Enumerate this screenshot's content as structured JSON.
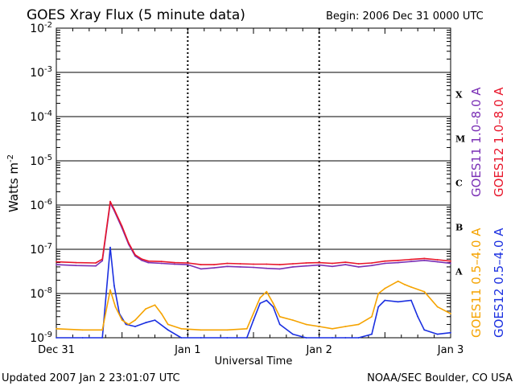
{
  "chart_data": {
    "type": "line",
    "title": "GOES Xray Flux (5 minute data)",
    "begin": "Begin:  2006 Dec 31 0000 UTC",
    "xlabel": "Universal Time",
    "ylabel": "Watts m",
    "ylabel_sup": "-2",
    "y_scale": "log",
    "ylim": [
      1e-09,
      0.01
    ],
    "y_ticks": [
      {
        "base": "10",
        "exp": "-2",
        "value": 0.01
      },
      {
        "base": "10",
        "exp": "-3",
        "value": 0.001
      },
      {
        "base": "10",
        "exp": "-4",
        "value": 0.0001
      },
      {
        "base": "10",
        "exp": "-5",
        "value": 1e-05
      },
      {
        "base": "10",
        "exp": "-6",
        "value": 1e-06
      },
      {
        "base": "10",
        "exp": "-7",
        "value": 1e-07
      },
      {
        "base": "10",
        "exp": "-8",
        "value": 1e-08
      },
      {
        "base": "10",
        "exp": "-9",
        "value": 1e-09
      }
    ],
    "x_days": [
      0,
      3
    ],
    "x_ticks": [
      {
        "label": "Dec 31",
        "day": 0
      },
      {
        "label": "Jan 1",
        "day": 1
      },
      {
        "label": "Jan 2",
        "day": 2
      },
      {
        "label": "Jan 3",
        "day": 3
      }
    ],
    "flare_classes": [
      {
        "label": "X",
        "value": 0.000316
      },
      {
        "label": "M",
        "value": 3.16e-05
      },
      {
        "label": "C",
        "value": 3.16e-06
      },
      {
        "label": "B",
        "value": 3.16e-07
      },
      {
        "label": "A",
        "value": 3.16e-08
      }
    ],
    "colors": {
      "goes11_long": "#7a2fb5",
      "goes12_long": "#e8162b",
      "goes11_short": "#f5a300",
      "goes12_short": "#1a2fe0"
    },
    "series": [
      {
        "name": "GOES11 1.0–8.0 A",
        "color_key": "goes11_long",
        "x": [
          0.0,
          0.15,
          0.3,
          0.35,
          0.41,
          0.44,
          0.5,
          0.55,
          0.6,
          0.65,
          0.7,
          0.8,
          0.9,
          1.0,
          1.1,
          1.2,
          1.3,
          1.4,
          1.5,
          1.6,
          1.7,
          1.8,
          1.9,
          2.0,
          2.1,
          2.2,
          2.3,
          2.4,
          2.5,
          2.6,
          2.7,
          2.8,
          2.9,
          3.0
        ],
        "y": [
          4.5e-08,
          4.3e-08,
          4.2e-08,
          5.5e-08,
          1.1e-06,
          7.5e-07,
          3e-07,
          1.3e-07,
          7e-08,
          5.6e-08,
          5e-08,
          4.8e-08,
          4.6e-08,
          4.5e-08,
          3.6e-08,
          3.8e-08,
          4.1e-08,
          4e-08,
          3.9e-08,
          3.7e-08,
          3.6e-08,
          4e-08,
          4.2e-08,
          4.4e-08,
          4.1e-08,
          4.5e-08,
          4e-08,
          4.3e-08,
          4.8e-08,
          5e-08,
          5.3e-08,
          5.6e-08,
          5.2e-08,
          4.8e-08
        ]
      },
      {
        "name": "GOES12 1.0–8.0 A",
        "color_key": "goes12_long",
        "x": [
          0.0,
          0.15,
          0.3,
          0.35,
          0.41,
          0.44,
          0.5,
          0.55,
          0.6,
          0.65,
          0.7,
          0.8,
          0.9,
          1.0,
          1.1,
          1.2,
          1.3,
          1.4,
          1.5,
          1.6,
          1.7,
          1.8,
          1.9,
          2.0,
          2.1,
          2.2,
          2.3,
          2.4,
          2.5,
          2.6,
          2.7,
          2.8,
          2.9,
          3.0
        ],
        "y": [
          5.2e-08,
          5e-08,
          4.9e-08,
          6e-08,
          1.2e-06,
          8e-07,
          3.3e-07,
          1.4e-07,
          7.5e-08,
          6e-08,
          5.4e-08,
          5.3e-08,
          5e-08,
          4.9e-08,
          4.5e-08,
          4.5e-08,
          4.8e-08,
          4.7e-08,
          4.6e-08,
          4.6e-08,
          4.5e-08,
          4.7e-08,
          4.9e-08,
          5e-08,
          4.8e-08,
          5.1e-08,
          4.7e-08,
          4.9e-08,
          5.4e-08,
          5.6e-08,
          5.9e-08,
          6.2e-08,
          5.8e-08,
          5.4e-08
        ]
      },
      {
        "name": "GOES11 0.5–4.0 A",
        "color_key": "goes11_short",
        "x": [
          0.0,
          0.2,
          0.35,
          0.41,
          0.45,
          0.5,
          0.55,
          0.6,
          0.68,
          0.75,
          0.8,
          0.85,
          0.95,
          1.1,
          1.3,
          1.45,
          1.55,
          1.6,
          1.65,
          1.7,
          1.8,
          1.9,
          2.0,
          2.1,
          2.2,
          2.3,
          2.4,
          2.45,
          2.5,
          2.6,
          2.65,
          2.7,
          2.8,
          2.9,
          3.0
        ],
        "y": [
          1.6e-09,
          1.5e-09,
          1.5e-09,
          1.2e-08,
          5e-09,
          2.5e-09,
          2e-09,
          2.5e-09,
          4.5e-09,
          5.5e-09,
          3.5e-09,
          2e-09,
          1.6e-09,
          1.5e-09,
          1.5e-09,
          1.6e-09,
          8e-09,
          1.1e-08,
          6e-09,
          3e-09,
          2.5e-09,
          2e-09,
          1.8e-09,
          1.6e-09,
          1.8e-09,
          2e-09,
          3e-09,
          1e-08,
          1.3e-08,
          1.9e-08,
          1.6e-08,
          1.4e-08,
          1.1e-08,
          5e-09,
          3.5e-09
        ]
      },
      {
        "name": "GOES12 0.5–4.0 A",
        "color_key": "goes12_short",
        "x": [
          0.0,
          0.2,
          0.35,
          0.41,
          0.44,
          0.48,
          0.53,
          0.6,
          0.68,
          0.75,
          0.85,
          0.95,
          1.1,
          1.3,
          1.45,
          1.5,
          1.55,
          1.6,
          1.65,
          1.7,
          1.8,
          1.9,
          2.0,
          2.1,
          2.2,
          2.3,
          2.4,
          2.45,
          2.5,
          2.6,
          2.7,
          2.75,
          2.8,
          2.9,
          3.0
        ],
        "y": [
          1e-09,
          1e-09,
          1e-09,
          1.1e-07,
          1.5e-08,
          3.5e-09,
          2e-09,
          1.8e-09,
          2.2e-09,
          2.5e-09,
          1.5e-09,
          1e-09,
          1e-09,
          1e-09,
          1e-09,
          2.5e-09,
          6e-09,
          7e-09,
          5e-09,
          2e-09,
          1.2e-09,
          1e-09,
          1e-09,
          1e-09,
          1e-09,
          1e-09,
          1.2e-09,
          5e-09,
          7e-09,
          6.5e-09,
          7e-09,
          3e-09,
          1.5e-09,
          1.2e-09,
          1.3e-09
        ]
      }
    ]
  },
  "footer": {
    "updated": "Updated 2007 Jan  2 23:01:07 UTC",
    "credit": "NOAA/SEC Boulder, CO USA"
  }
}
